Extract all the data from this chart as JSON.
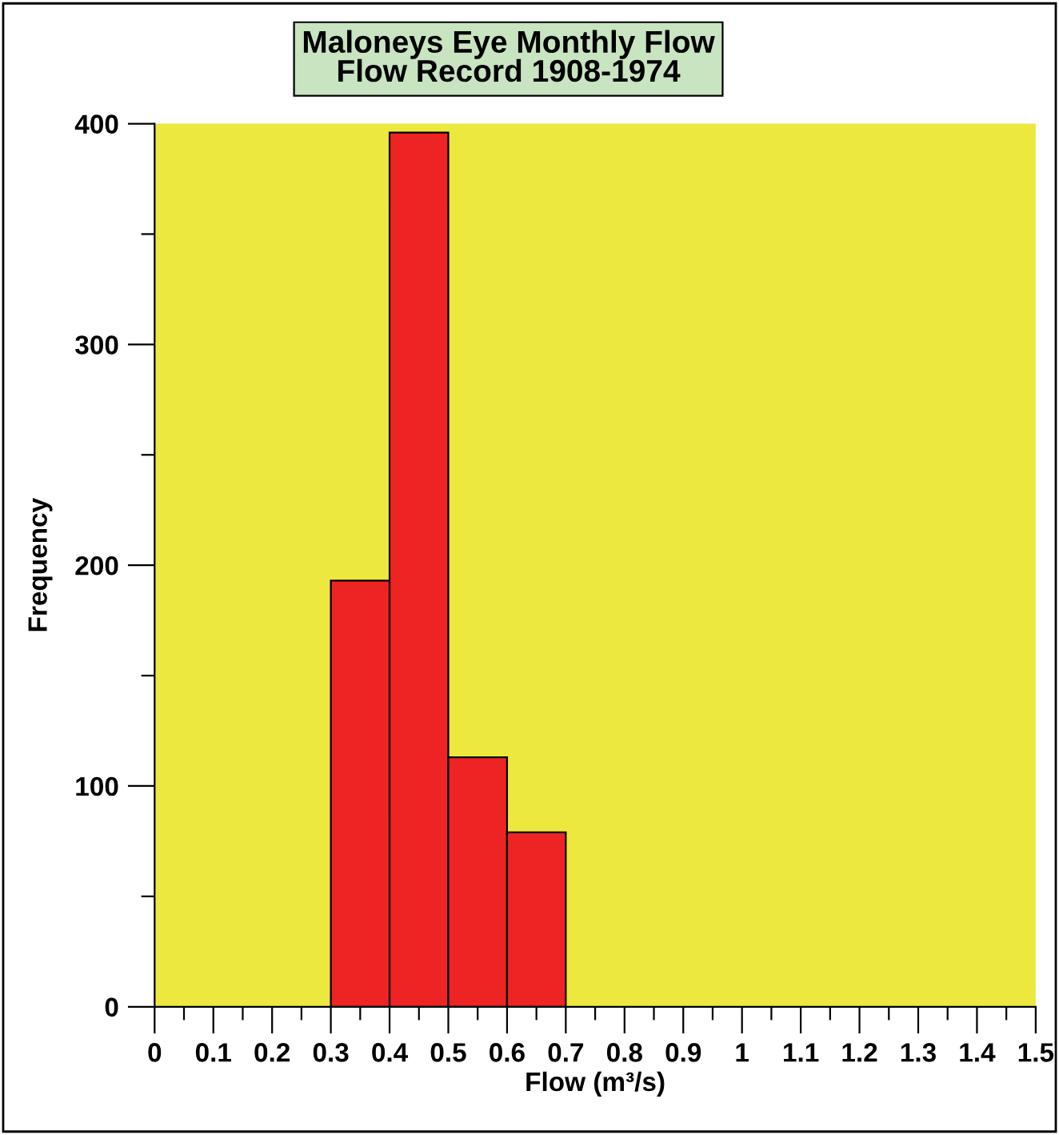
{
  "chart_data": {
    "type": "histogram",
    "title": "Maloneys Eye Monthly Flow\nFlow Record 1908-1974",
    "xlabel": "Flow (m³/s)",
    "ylabel": "Frequency",
    "bins": [
      0.3,
      0.4,
      0.5,
      0.6,
      0.7
    ],
    "values": [
      193,
      396,
      113,
      79
    ],
    "color": "#ee2424",
    "xlim": [
      0,
      1.5
    ],
    "ylim": [
      0,
      400
    ],
    "xticks": [
      0,
      {
        "value": 0.05,
        "label": null
      },
      {
        "value": 0.1,
        "label": "0.1"
      },
      {
        "value": 0.15,
        "label": null
      },
      {
        "value": 0.2,
        "label": "0.2"
      },
      {
        "value": 0.25,
        "label": null
      },
      {
        "value": 0.3,
        "label": "0.3"
      },
      {
        "value": 0.35,
        "label": null
      },
      {
        "value": 0.4,
        "label": "0.4"
      },
      {
        "value": 0.45,
        "label": null
      },
      {
        "value": 0.5,
        "label": "0.5"
      },
      {
        "value": 0.55,
        "label": null
      },
      {
        "value": 0.6,
        "label": "0.6"
      },
      {
        "value": 0.65,
        "label": null
      },
      {
        "value": 0.7,
        "label": "0.7"
      },
      {
        "value": 0.75,
        "label": null
      },
      {
        "value": 0.8,
        "label": "0.8"
      },
      {
        "value": 0.85,
        "label": null
      },
      {
        "value": 0.9,
        "label": "0.9"
      },
      {
        "value": 0.95,
        "label": null
      },
      1,
      {
        "value": 1.05,
        "label": null
      },
      {
        "value": 1.1,
        "label": "1.1"
      },
      {
        "value": 1.15,
        "label": null
      },
      {
        "value": 1.2,
        "label": "1.2"
      },
      {
        "value": 1.25,
        "label": null
      },
      {
        "value": 1.3,
        "label": "1.3"
      },
      {
        "value": 1.35,
        "label": null
      },
      {
        "value": 1.4,
        "label": "1.4"
      },
      {
        "value": 1.45,
        "label": null
      },
      {
        "value": 1.5,
        "label": "1.5"
      }
    ],
    "yticks": [
      0,
      {
        "value": 50,
        "label": null
      },
      100,
      {
        "value": 150,
        "label": null
      },
      200,
      {
        "value": 250,
        "label": null
      },
      300,
      {
        "value": 350,
        "label": null
      },
      400
    ],
    "grid": false,
    "legend": false
  }
}
